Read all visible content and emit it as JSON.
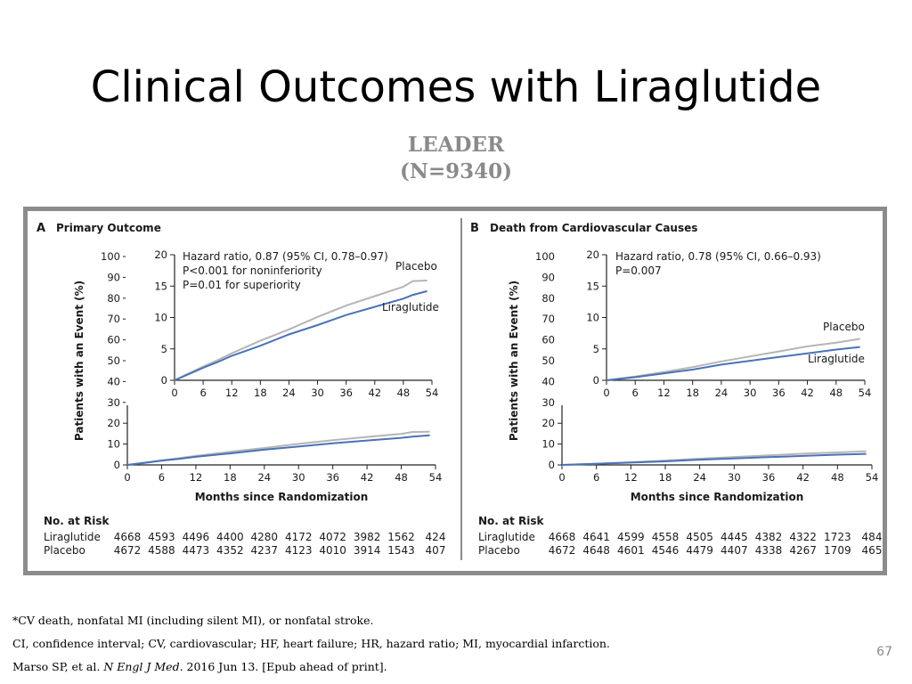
{
  "slide": {
    "title": "Clinical Outcomes with Liraglutide",
    "subtitle_line1": "LEADER",
    "subtitle_line2": "(N=9340)",
    "page_number": "67"
  },
  "footnotes": {
    "line1": "*CV death, nonfatal MI (including silent MI), or nonfatal stroke.",
    "line2": "CI, confidence interval; CV, cardiovascular; HF, heart failure; HR, hazard ratio; MI, myocardial infarction.",
    "line3_prefix": "Marso SP, et al. ",
    "line3_journal": "N Engl J Med",
    "line3_suffix": ". 2016 Jun 13. [Epub ahead of print]."
  },
  "colors": {
    "liraglutide": "#4a72b8",
    "placebo": "#b5b5b5",
    "frame": "#8c8c8c",
    "subtitle": "#8a8a8a"
  },
  "chart_data": [
    {
      "type": "line",
      "panel_letter": "A",
      "title": "Primary Outcome",
      "xlabel": "Months since Randomization",
      "ylabel": "Patients with an Event (%)",
      "x_ticks": [
        0,
        6,
        12,
        18,
        24,
        30,
        36,
        42,
        48,
        54
      ],
      "y_ticks": [
        0,
        10,
        20,
        30,
        40,
        50,
        60,
        70,
        80,
        90,
        100
      ],
      "xlim": [
        0,
        54
      ],
      "ylim": [
        0,
        100
      ],
      "series": [
        {
          "name": "Placebo",
          "color": "#b5b5b5",
          "x": [
            0,
            3,
            6,
            9,
            12,
            18,
            24,
            30,
            36,
            42,
            48,
            50,
            53
          ],
          "y": [
            0,
            1.1,
            2.2,
            3.2,
            4.3,
            6.3,
            8.1,
            10.1,
            11.9,
            13.4,
            14.9,
            15.8,
            15.9
          ]
        },
        {
          "name": "Liraglutide",
          "color": "#4a72b8",
          "x": [
            0,
            3,
            6,
            9,
            12,
            18,
            24,
            30,
            36,
            42,
            48,
            50,
            53
          ],
          "y": [
            0,
            1.0,
            2.0,
            2.9,
            3.9,
            5.5,
            7.3,
            8.8,
            10.4,
            11.7,
            13.0,
            13.6,
            14.2
          ]
        }
      ],
      "inset": {
        "x_ticks": [
          0,
          6,
          12,
          18,
          24,
          30,
          36,
          42,
          48,
          54
        ],
        "y_ticks": [
          0,
          5,
          10,
          15,
          20
        ],
        "xlim": [
          0,
          54
        ],
        "ylim": [
          0,
          20
        ],
        "annotation_lines": [
          "Hazard ratio, 0.87 (95% CI, 0.78–0.97)",
          "P<0.001 for noninferiority",
          "P=0.01 for superiority"
        ],
        "label_placebo": "Placebo",
        "label_liraglutide": "Liraglutide"
      },
      "at_risk": {
        "heading": "No. at Risk",
        "rows": [
          {
            "label": "Liraglutide",
            "values": [
              "4668",
              "4593",
              "4496",
              "4400",
              "4280",
              "4172",
              "4072",
              "3982",
              "1562",
              "424"
            ]
          },
          {
            "label": "Placebo",
            "values": [
              "4672",
              "4588",
              "4473",
              "4352",
              "4237",
              "4123",
              "4010",
              "3914",
              "1543",
              "407"
            ]
          }
        ]
      }
    },
    {
      "type": "line",
      "panel_letter": "B",
      "title": "Death from Cardiovascular Causes",
      "xlabel": "Months since Randomization",
      "ylabel": "Patients with an Event (%)",
      "x_ticks": [
        0,
        6,
        12,
        18,
        24,
        30,
        36,
        42,
        48,
        54
      ],
      "y_ticks": [
        0,
        10,
        20,
        30,
        40,
        50,
        60,
        70,
        80,
        90,
        100
      ],
      "xlim": [
        0,
        54
      ],
      "ylim": [
        0,
        100
      ],
      "series": [
        {
          "name": "Placebo",
          "color": "#b5b5b5",
          "x": [
            0,
            6,
            12,
            18,
            24,
            30,
            36,
            42,
            48,
            53
          ],
          "y": [
            0,
            0.6,
            1.3,
            2.1,
            3.0,
            3.8,
            4.6,
            5.4,
            6.0,
            6.6
          ]
        },
        {
          "name": "Liraglutide",
          "color": "#4a72b8",
          "x": [
            0,
            6,
            12,
            18,
            24,
            30,
            36,
            42,
            48,
            53
          ],
          "y": [
            0,
            0.5,
            1.1,
            1.7,
            2.5,
            3.1,
            3.7,
            4.3,
            4.9,
            5.3
          ]
        }
      ],
      "inset": {
        "x_ticks": [
          0,
          6,
          12,
          18,
          24,
          30,
          36,
          42,
          48,
          54
        ],
        "y_ticks": [
          0,
          5,
          10,
          15,
          20
        ],
        "xlim": [
          0,
          54
        ],
        "ylim": [
          0,
          20
        ],
        "annotation_lines": [
          "Hazard ratio, 0.78 (95% CI, 0.66–0.93)",
          "P=0.007"
        ],
        "label_placebo": "Placebo",
        "label_liraglutide": "Liraglutide"
      },
      "at_risk": {
        "heading": "No. at Risk",
        "rows": [
          {
            "label": "Liraglutide",
            "values": [
              "4668",
              "4641",
              "4599",
              "4558",
              "4505",
              "4445",
              "4382",
              "4322",
              "1723",
              "484"
            ]
          },
          {
            "label": "Placebo",
            "values": [
              "4672",
              "4648",
              "4601",
              "4546",
              "4479",
              "4407",
              "4338",
              "4267",
              "1709",
              "465"
            ]
          }
        ]
      }
    }
  ]
}
